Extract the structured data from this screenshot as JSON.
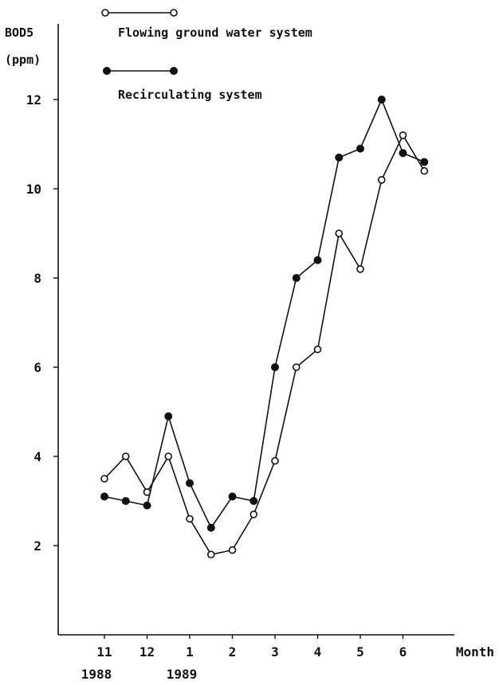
{
  "chart_data": {
    "type": "line",
    "ylabel_line1": "BOD5",
    "ylabel_line2": "(ppm)",
    "xlabel": "Month",
    "x_ticks": [
      "11",
      "12",
      "1",
      "2",
      "3",
      "4",
      "5",
      "6"
    ],
    "x_tick_values": [
      11,
      12,
      13,
      14,
      15,
      16,
      17,
      18
    ],
    "year_labels": [
      {
        "label": "1988",
        "at": 11
      },
      {
        "label": "1989",
        "at": 13
      }
    ],
    "y_ticks": [
      2,
      4,
      6,
      8,
      10,
      12
    ],
    "ylim": [
      0,
      13
    ],
    "xlim": [
      10,
      19.7
    ],
    "series": [
      {
        "name": "Flowing ground water system",
        "marker": "open-circle",
        "x": [
          11,
          11.5,
          12,
          12.5,
          13,
          13.5,
          14,
          14.5,
          15,
          15.5,
          16,
          16.5,
          17,
          17.5,
          18,
          18.5
        ],
        "y": [
          3.5,
          4.0,
          3.2,
          4.0,
          2.6,
          1.8,
          1.9,
          2.7,
          3.9,
          6.0,
          6.4,
          9.0,
          8.2,
          10.2,
          11.2,
          10.4
        ]
      },
      {
        "name": "Recirculating system",
        "marker": "filled-circle",
        "x": [
          11,
          11.5,
          12,
          12.5,
          13,
          13.5,
          14,
          14.5,
          15,
          15.5,
          16,
          16.5,
          17,
          17.5,
          18,
          18.5
        ],
        "y": [
          3.1,
          3.0,
          2.9,
          4.9,
          3.4,
          2.4,
          3.1,
          3.0,
          6.0,
          8.0,
          8.4,
          10.7,
          10.9,
          12.0,
          10.8,
          10.6
        ]
      }
    ]
  }
}
